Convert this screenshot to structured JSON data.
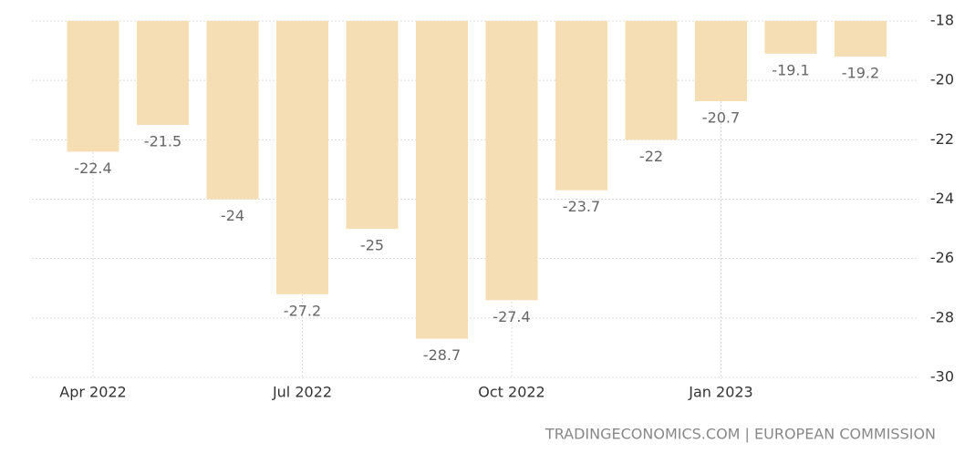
{
  "chart_data": {
    "type": "bar",
    "categories": [
      "Apr 2022",
      null,
      null,
      "Jul 2022",
      null,
      null,
      "Oct 2022",
      null,
      null,
      "Jan 2023",
      null,
      null
    ],
    "values": [
      -22.4,
      -21.5,
      -24,
      -27.2,
      -25,
      -28.7,
      -27.4,
      -23.7,
      -22,
      -20.7,
      -19.1,
      -19.2
    ],
    "color": "#f5deb3",
    "ylim": [
      -30,
      -18
    ],
    "yticks": [
      -18,
      -20,
      -22,
      -24,
      -26,
      -28,
      -30
    ],
    "grid": true,
    "source": "TRADINGECONOMICS.COM | EUROPEAN COMMISSION"
  }
}
